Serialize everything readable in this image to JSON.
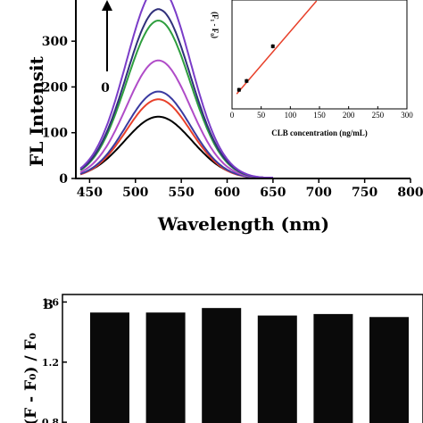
{
  "chart_data": [
    {
      "type": "line",
      "ylabel": "FL Intensit",
      "xlabel": "Wavelength (nm)",
      "xlim": [
        435,
        800
      ],
      "ylim": [
        0,
        390
      ],
      "x_ticks": [
        "450",
        "500",
        "550",
        "600",
        "650",
        "700",
        "750",
        "800"
      ],
      "y_ticks": [
        "0",
        "100",
        "200",
        "300"
      ],
      "arrow_label": "0",
      "series": [
        {
          "color": "#000000",
          "peak": 525,
          "height": 135,
          "width": 37
        },
        {
          "color": "#e8402a",
          "peak": 525,
          "height": 173,
          "width": 35
        },
        {
          "color": "#3a3aa0",
          "peak": 525,
          "height": 190,
          "width": 35
        },
        {
          "color": "#b04cc8",
          "peak": 525,
          "height": 258,
          "width": 35
        },
        {
          "color": "#2e9e3e",
          "peak": 525,
          "height": 345,
          "width": 35
        },
        {
          "color": "#30307a",
          "peak": 525,
          "height": 370,
          "width": 35
        },
        {
          "color": "#7a3cc8",
          "peak": 525,
          "height": 420,
          "width": 35
        }
      ]
    },
    {
      "type": "scatter",
      "xlabel": "CLB concentration (ng/mL)",
      "ylabel": "(F₁ - F₀)",
      "xlim": [
        0,
        300
      ],
      "x_ticks": [
        "0",
        "50",
        "100",
        "150",
        "200",
        "250",
        "300"
      ],
      "points": [
        {
          "x": 12,
          "y": 0.28,
          "err": 0.03
        },
        {
          "x": 25,
          "y": 0.41,
          "err": 0.03
        },
        {
          "x": 70,
          "y": 0.92,
          "err": 0.03
        }
      ],
      "fit_line": {
        "x": [
          8,
          145
        ],
        "y": [
          0.22,
          1.75
        ],
        "color": "#e8402a"
      }
    },
    {
      "type": "bar",
      "panel_label": "B",
      "ylabel": "(F - F₀) / F₀",
      "ylim": [
        0.7,
        1.65
      ],
      "y_ticks": [
        "1.6",
        "1.2",
        "0.8"
      ],
      "values": [
        1.53,
        1.53,
        1.56,
        1.51,
        1.52,
        1.5
      ]
    }
  ]
}
